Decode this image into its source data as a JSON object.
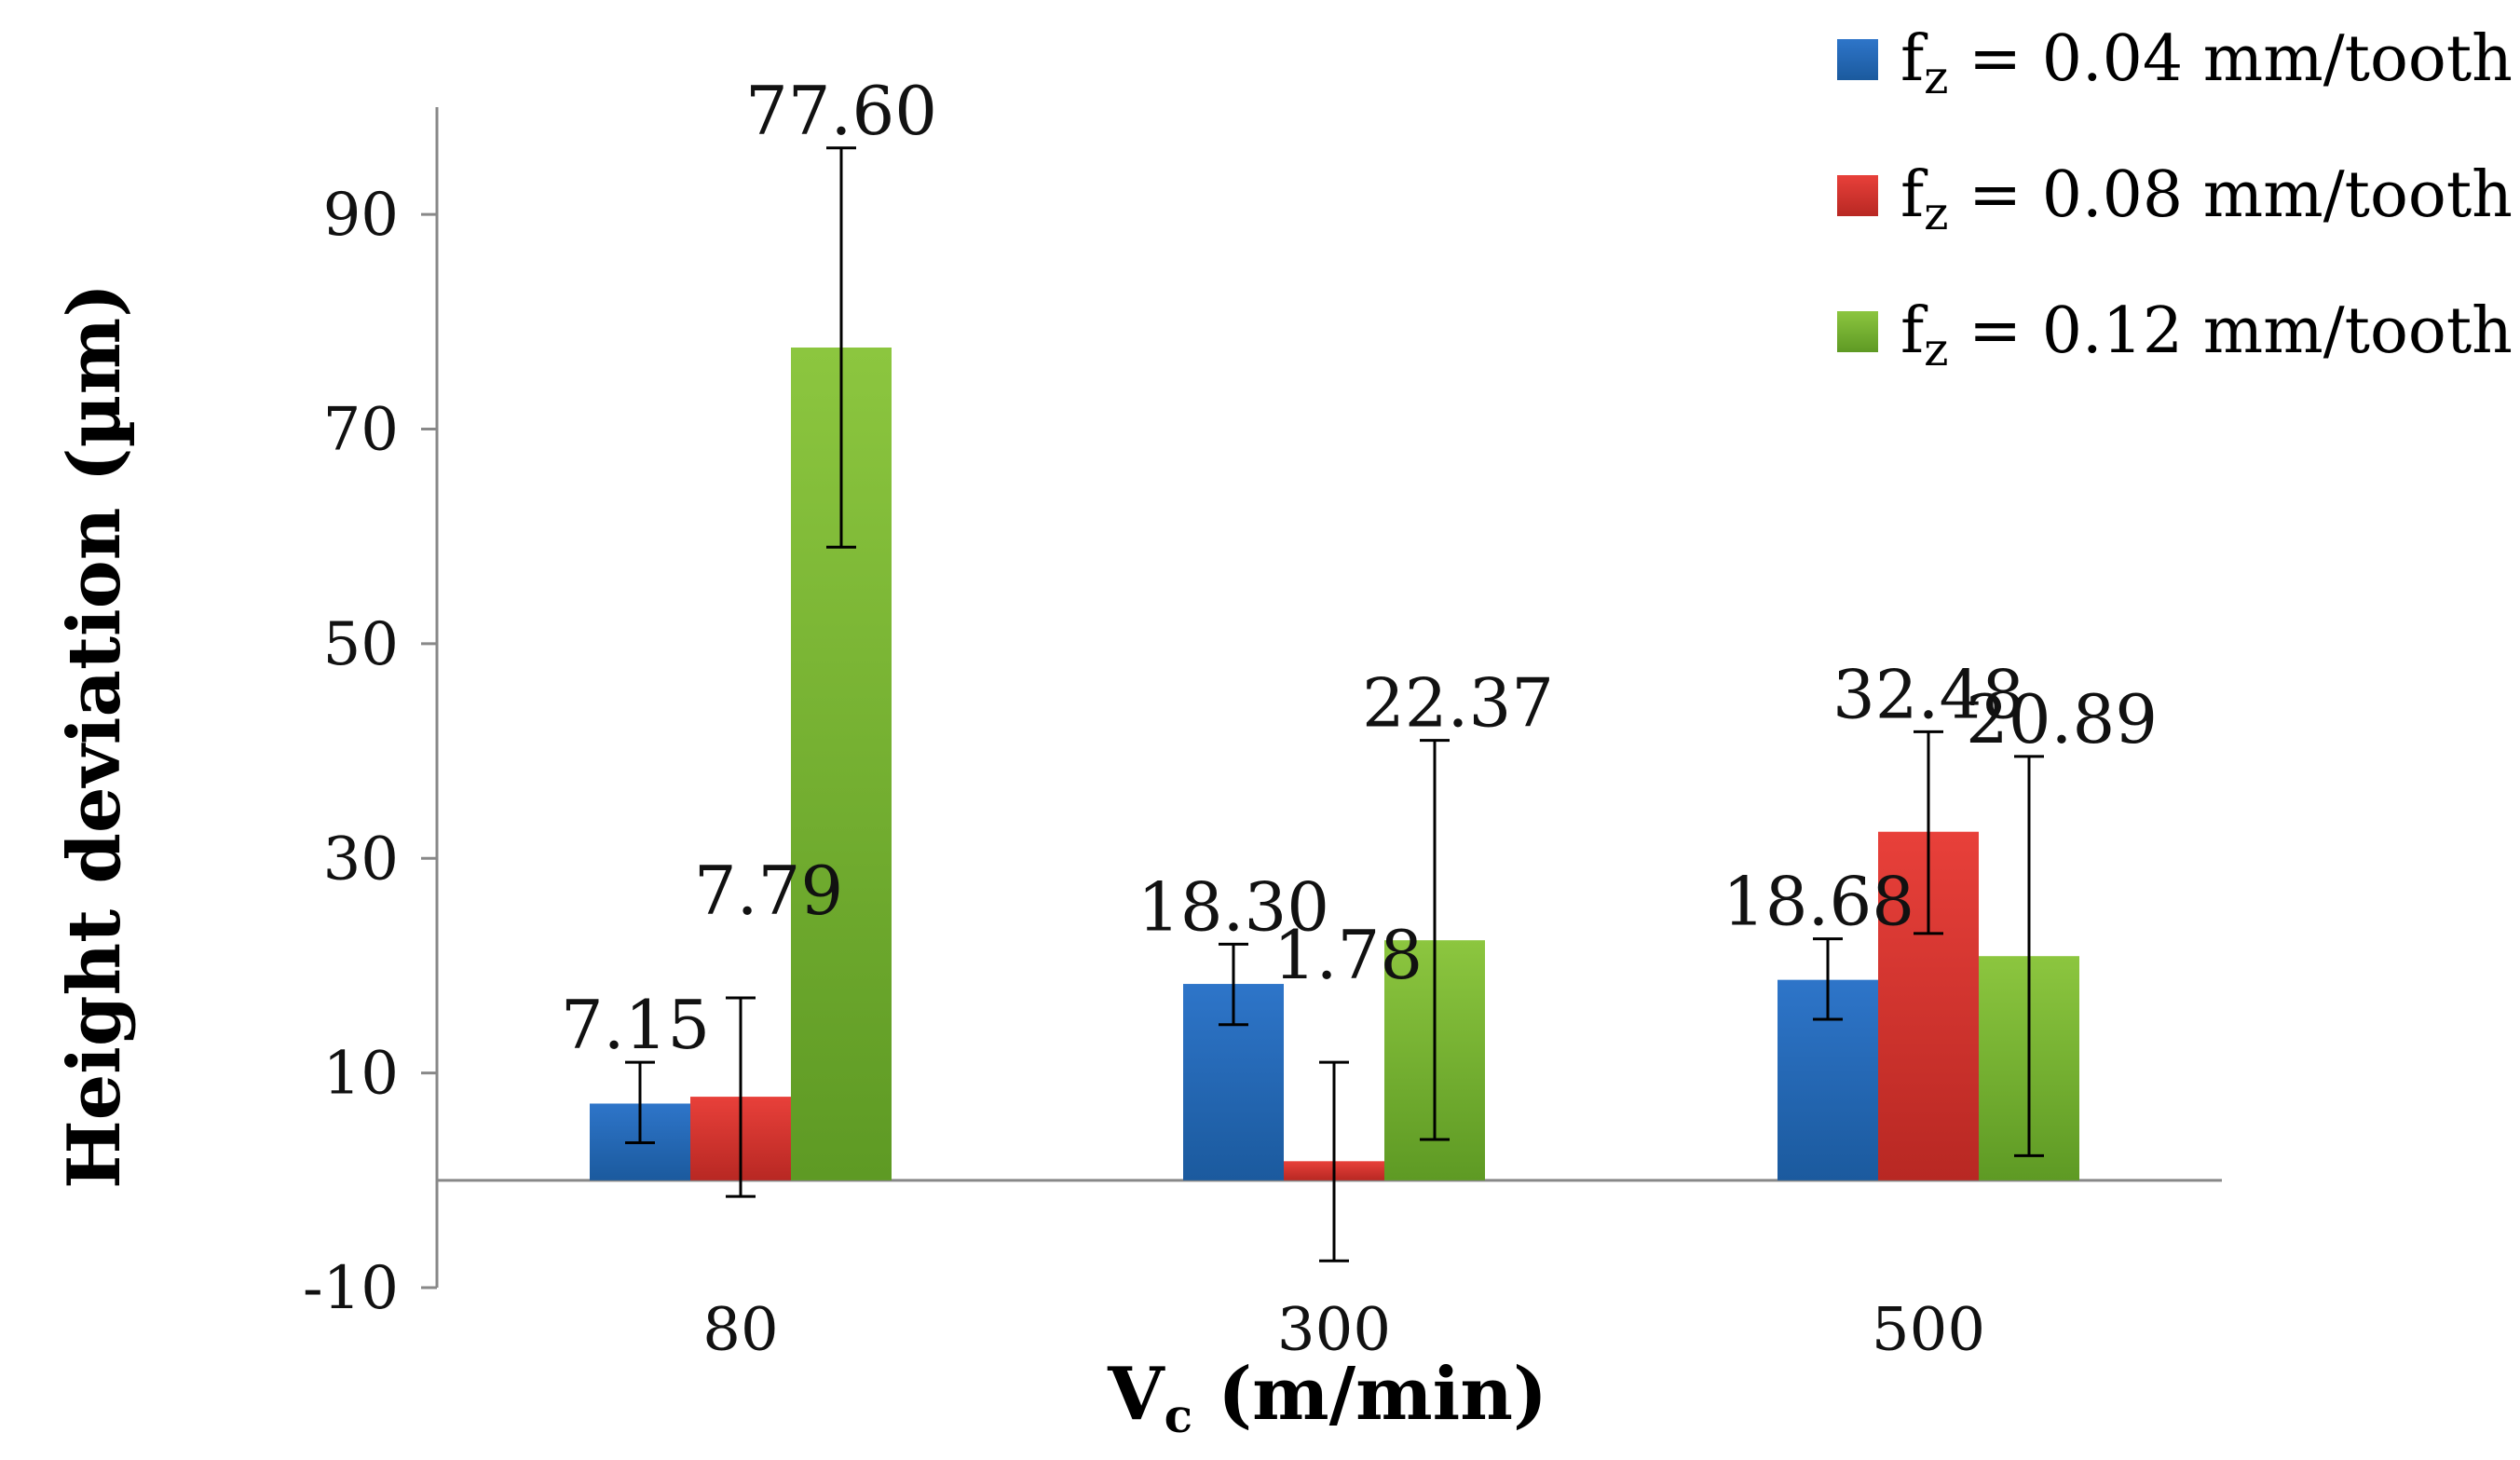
{
  "chart_data": {
    "type": "bar",
    "title": "",
    "xlabel": "Vc (m/min)",
    "xlabel_main": "V",
    "xlabel_sub": "c",
    "xlabel_rest": " (m/min)",
    "ylabel": "Height deviation (µm)",
    "ylim": [
      -10,
      100
    ],
    "yticks": [
      -10,
      10,
      30,
      50,
      70,
      90
    ],
    "categories": [
      "80",
      "300",
      "500"
    ],
    "series": [
      {
        "name": "fz = 0.04 mm/tooth",
        "legend_main": "f",
        "legend_sub": "z",
        "legend_rest": " =  0.04 mm/tooth",
        "color": "#2E75C9",
        "color_dark": "#1B5A9E",
        "values": [
          7.15,
          18.3,
          18.68
        ],
        "labels": [
          "7.15",
          "18.30",
          "18.68"
        ],
        "error_low": [
          3.5,
          14.5,
          15.0
        ],
        "error_high": [
          11.0,
          22.0,
          22.5
        ]
      },
      {
        "name": "fz = 0.08 mm/tooth",
        "legend_main": "f",
        "legend_sub": "z",
        "legend_rest": " =  0.08 mm/tooth",
        "color": "#E8403A",
        "color_dark": "#B82823",
        "values": [
          7.79,
          1.78,
          32.48
        ],
        "labels": [
          "7.79",
          "1.78",
          "32.48"
        ],
        "error_low": [
          -1.5,
          -7.5,
          23.0
        ],
        "error_high": [
          17.0,
          11.0,
          41.8
        ]
      },
      {
        "name": "fz = 0.12 mm/tooth",
        "legend_main": "f",
        "legend_sub": "z",
        "legend_rest": " = 0.12 mm/tooth",
        "color": "#8CC63F",
        "color_dark": "#5E9A24",
        "values": [
          77.6,
          22.37,
          20.89
        ],
        "labels": [
          "77.60",
          "22.37",
          "20.89"
        ],
        "error_low": [
          59.0,
          3.8,
          2.3
        ],
        "error_high": [
          96.2,
          41.0,
          39.5
        ]
      }
    ],
    "legend_position": "top-right",
    "grid": false
  }
}
